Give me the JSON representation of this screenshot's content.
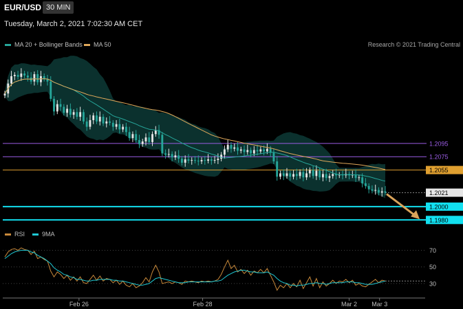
{
  "header": {
    "symbol": "EUR/USD",
    "timeframe": "30 MIN",
    "datetime": "Tuesday, March 2, 2021 7:02:30 AM CET"
  },
  "legend_top": [
    {
      "label": "MA 20 + Bollinger Bands",
      "color": "#26a69a"
    },
    {
      "label": "MA 50",
      "color": "#e0a85a"
    }
  ],
  "legend_rsi": [
    {
      "label": "RSI",
      "color": "#c8893a"
    },
    {
      "label": "9MA",
      "color": "#1fc9d4"
    }
  ],
  "credit": "Research © 2021 Trading Central",
  "colors": {
    "up": "#e6e6e6",
    "down": "#26a69a",
    "ma20": "#26a69a",
    "ma50": "#e0a85a",
    "band_fill": "#0d3a36",
    "rsi": "#c8893a",
    "rsi_ma": "#1fc9d4",
    "resistance": "#9b5de5",
    "pivot": "#e0a030",
    "support": "#12e0f0",
    "arrow": "#d9a35a"
  },
  "chart_data": {
    "type": "candlestick",
    "x_labels": [
      "Feb 26",
      "Feb 28",
      "Mar 2",
      "Mar 3"
    ],
    "ylim": [
      1.197,
      1.223
    ],
    "close_series": [
      1.217,
      1.2185,
      1.2196,
      1.2198,
      1.2195,
      1.22,
      1.2197,
      1.2194,
      1.2188,
      1.2199,
      1.2187,
      1.2196,
      1.2192,
      1.2188,
      1.2162,
      1.2143,
      1.2154,
      1.215,
      1.2141,
      1.2147,
      1.2138,
      1.2142,
      1.2135,
      1.2142,
      1.2128,
      1.212,
      1.213,
      1.2137,
      1.2128,
      1.2135,
      1.2125,
      1.2128,
      1.2126,
      1.212,
      1.2124,
      1.2116,
      1.212,
      1.2112,
      1.2103,
      1.2109,
      1.21,
      1.2094,
      1.2098,
      1.2104,
      1.2097,
      1.2109,
      1.2115,
      1.2108,
      1.208,
      1.2078,
      1.2079,
      1.2074,
      1.2077,
      1.2072,
      1.2066,
      1.2071,
      1.2069,
      1.207,
      1.2069,
      1.2068,
      1.207,
      1.2069,
      1.2071,
      1.2069,
      1.207,
      1.2072,
      1.2078,
      1.2086,
      1.2093,
      1.2087,
      1.2089,
      1.2084,
      1.2086,
      1.2082,
      1.2085,
      1.208,
      1.2085,
      1.2083,
      1.2086,
      1.2083,
      1.2087,
      1.2081,
      1.2068,
      1.2045,
      1.205,
      1.2046,
      1.205,
      1.2045,
      1.2049,
      1.2046,
      1.2052,
      1.2044,
      1.205,
      1.2055,
      1.2046,
      1.2054,
      1.2044,
      1.2049,
      1.2043,
      1.2046,
      1.2049,
      1.2047,
      1.2048,
      1.2047,
      1.2049,
      1.2047,
      1.2048,
      1.2043,
      1.2044,
      1.2035,
      1.2031,
      1.2026,
      1.2024,
      1.2025,
      1.2021,
      1.2023,
      1.2021
    ],
    "levels": [
      {
        "value": 1.2095,
        "label": "1.2095",
        "kind": "resistance"
      },
      {
        "value": 1.2075,
        "label": "1.2075",
        "kind": "resistance"
      },
      {
        "value": 1.2055,
        "label": "1.2055",
        "kind": "pivot"
      },
      {
        "value": 1.2021,
        "label": "1.2021",
        "kind": "last"
      },
      {
        "value": 1.2,
        "label": "1.2000",
        "kind": "support"
      },
      {
        "value": 1.198,
        "label": "1.1980",
        "kind": "support"
      }
    ],
    "rsi": {
      "ylim": [
        20,
        82
      ],
      "ticks": [
        70,
        50,
        30
      ],
      "rsi_series": [
        62,
        68,
        71,
        72,
        70,
        73,
        71,
        70,
        65,
        69,
        60,
        62,
        59,
        57,
        45,
        38,
        44,
        41,
        36,
        40,
        34,
        38,
        33,
        38,
        31,
        30,
        35,
        40,
        34,
        39,
        33,
        36,
        35,
        31,
        34,
        29,
        33,
        28,
        26,
        30,
        25,
        27,
        31,
        37,
        32,
        44,
        52,
        44,
        30,
        31,
        32,
        30,
        32,
        31,
        29,
        33,
        32,
        33,
        32,
        31,
        33,
        32,
        33,
        32,
        33,
        35,
        41,
        50,
        58,
        48,
        52,
        44,
        47,
        42,
        46,
        40,
        45,
        43,
        47,
        43,
        48,
        40,
        32,
        22,
        28,
        25,
        30,
        25,
        30,
        26,
        34,
        24,
        31,
        38,
        27,
        36,
        25,
        32,
        27,
        30,
        34,
        30,
        33,
        32,
        35,
        31,
        34,
        28,
        30,
        27,
        26,
        29,
        32,
        35,
        31,
        34,
        33
      ],
      "ma_series": [
        60,
        63,
        66,
        68,
        69,
        70,
        70,
        70,
        68,
        67,
        64,
        62,
        60,
        57,
        54,
        49,
        46,
        44,
        41,
        40,
        38,
        37,
        35,
        35,
        34,
        33,
        33,
        34,
        34,
        35,
        35,
        35,
        35,
        34,
        34,
        33,
        33,
        32,
        31,
        30,
        29,
        28,
        28,
        29,
        30,
        33,
        36,
        37,
        36,
        35,
        34,
        33,
        32,
        31,
        31,
        31,
        32,
        32,
        32,
        32,
        32,
        32,
        32,
        32,
        33,
        33,
        34,
        37,
        40,
        42,
        44,
        45,
        46,
        46,
        45,
        44,
        44,
        43,
        43,
        43,
        44,
        42,
        40,
        36,
        33,
        31,
        30,
        28,
        28,
        27,
        28,
        28,
        29,
        30,
        30,
        31,
        30,
        30,
        29,
        30,
        31,
        31,
        31,
        31,
        32,
        32,
        32,
        31,
        31,
        30,
        29,
        29,
        29,
        30,
        31,
        32,
        33
      ]
    }
  }
}
